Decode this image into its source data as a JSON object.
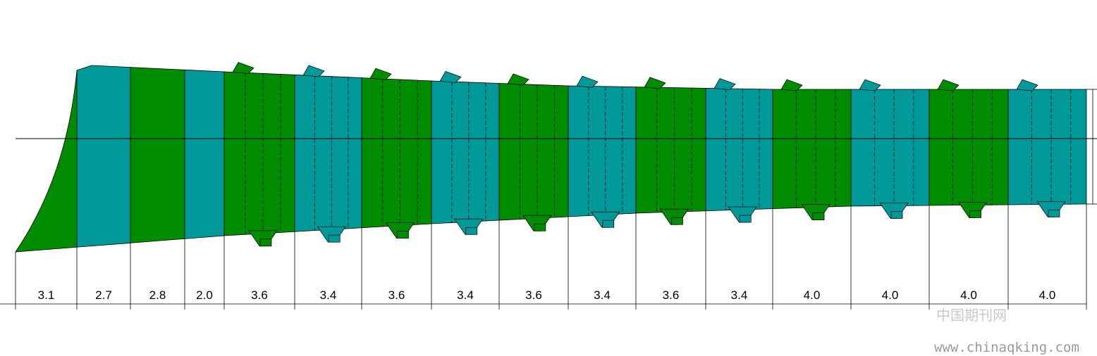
{
  "dimensions": [
    "3.1",
    "2.7",
    "2.8",
    "2.0",
    "3.6",
    "3.4",
    "3.6",
    "3.4",
    "3.6",
    "3.4",
    "3.6",
    "3.4",
    "4.0",
    "4.0",
    "4.0",
    "4.0"
  ],
  "watermark": {
    "title": "中国期刊网",
    "url": "www.chinaqking.com"
  }
}
